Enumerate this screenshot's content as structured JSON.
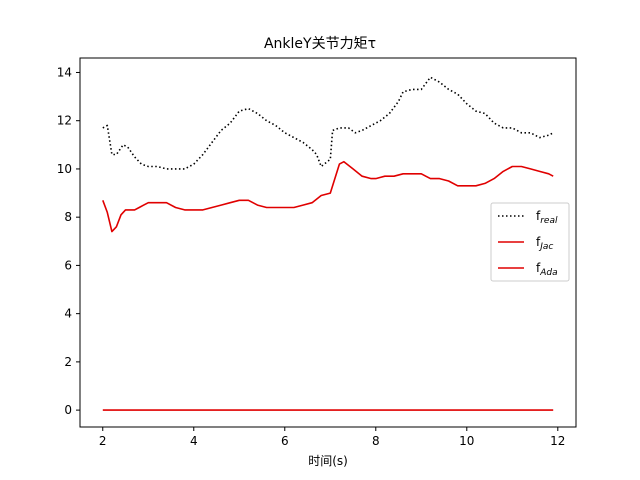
{
  "chart_data": {
    "type": "line",
    "title": "AnkleY关节力矩τ",
    "xlabel": "时间(s)",
    "ylabel": "",
    "xlim": [
      1.5,
      12.4
    ],
    "ylim": [
      -0.7,
      14.6
    ],
    "xticks": [
      2,
      4,
      6,
      8,
      10,
      12
    ],
    "yticks": [
      0,
      2,
      4,
      6,
      8,
      10,
      12,
      14
    ],
    "grid": false,
    "legend_position": "center-right",
    "series": [
      {
        "name": "f",
        "name_sub": "real",
        "color": "#000000",
        "style": "dotted",
        "x": [
          2.0,
          2.1,
          2.15,
          2.2,
          2.3,
          2.45,
          2.55,
          2.7,
          2.85,
          3.0,
          3.2,
          3.4,
          3.6,
          3.8,
          4.0,
          4.2,
          4.4,
          4.6,
          4.8,
          5.0,
          5.2,
          5.4,
          5.6,
          5.8,
          6.0,
          6.2,
          6.4,
          6.6,
          6.7,
          6.8,
          7.0,
          7.05,
          7.2,
          7.4,
          7.55,
          7.7,
          7.9,
          8.1,
          8.3,
          8.5,
          8.6,
          8.8,
          9.0,
          9.2,
          9.4,
          9.6,
          9.8,
          10.0,
          10.2,
          10.4,
          10.6,
          10.8,
          11.0,
          11.2,
          11.4,
          11.6,
          11.8,
          11.9
        ],
        "values": [
          11.7,
          11.8,
          11.2,
          10.6,
          10.6,
          11.0,
          10.9,
          10.5,
          10.2,
          10.1,
          10.1,
          10.0,
          10.0,
          10.0,
          10.2,
          10.6,
          11.1,
          11.6,
          11.9,
          12.4,
          12.5,
          12.3,
          12.0,
          11.8,
          11.5,
          11.3,
          11.1,
          10.8,
          10.6,
          10.1,
          10.4,
          11.6,
          11.7,
          11.7,
          11.5,
          11.6,
          11.8,
          12.0,
          12.3,
          12.8,
          13.2,
          13.3,
          13.3,
          13.8,
          13.6,
          13.3,
          13.1,
          12.7,
          12.4,
          12.3,
          11.9,
          11.7,
          11.7,
          11.5,
          11.5,
          11.3,
          11.4,
          11.5
        ]
      },
      {
        "name": "f",
        "name_sub": "Jac",
        "color": "#e00000",
        "style": "solid",
        "x": [
          2.0,
          2.1,
          2.2,
          2.3,
          2.4,
          2.5,
          2.6,
          2.7,
          2.8,
          2.9,
          3.0,
          3.2,
          3.4,
          3.6,
          3.8,
          4.0,
          4.2,
          4.4,
          4.6,
          4.8,
          5.0,
          5.2,
          5.4,
          5.6,
          5.8,
          6.0,
          6.2,
          6.4,
          6.6,
          6.8,
          7.0,
          7.2,
          7.3,
          7.5,
          7.7,
          7.9,
          8.0,
          8.2,
          8.4,
          8.6,
          8.8,
          9.0,
          9.1,
          9.2,
          9.4,
          9.6,
          9.8,
          10.0,
          10.2,
          10.4,
          10.6,
          10.8,
          11.0,
          11.2,
          11.4,
          11.6,
          11.8,
          11.9
        ],
        "values": [
          8.7,
          8.2,
          7.4,
          7.6,
          8.1,
          8.3,
          8.3,
          8.3,
          8.4,
          8.5,
          8.6,
          8.6,
          8.6,
          8.4,
          8.3,
          8.3,
          8.3,
          8.4,
          8.5,
          8.6,
          8.7,
          8.7,
          8.5,
          8.4,
          8.4,
          8.4,
          8.4,
          8.5,
          8.6,
          8.9,
          9.0,
          10.2,
          10.3,
          10.0,
          9.7,
          9.6,
          9.6,
          9.7,
          9.7,
          9.8,
          9.8,
          9.8,
          9.7,
          9.6,
          9.6,
          9.5,
          9.3,
          9.3,
          9.3,
          9.4,
          9.6,
          9.9,
          10.1,
          10.1,
          10.0,
          9.9,
          9.8,
          9.7
        ]
      },
      {
        "name": "f",
        "name_sub": "Ada",
        "color": "#e00000",
        "style": "solid",
        "x": [
          2.0,
          11.9
        ],
        "values": [
          0.0,
          0.0
        ]
      }
    ]
  }
}
